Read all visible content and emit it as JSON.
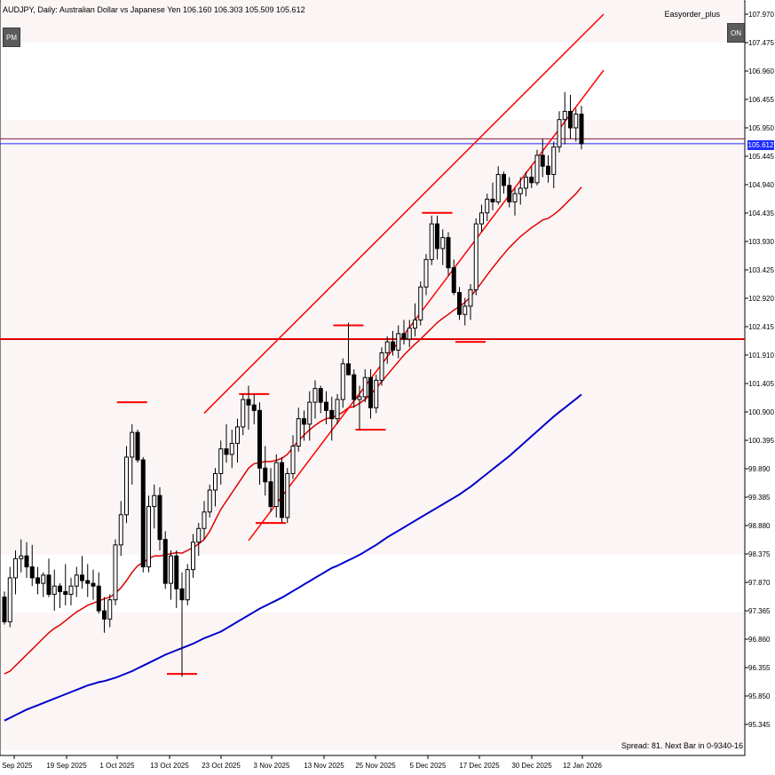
{
  "header": {
    "title": "AUDJPY, Daily:  Australian Dollar vs Japanese Yen  106.160 106.303 105.509 105.612",
    "ea_label": "Easyorder_plus",
    "btn_left": "PM",
    "btn_right": "ON",
    "spread": "Spread: 81. Next Bar in 0-9340-16"
  },
  "colors": {
    "bull": "#ffffff",
    "bear": "#000000",
    "ma_fast": "#e00000",
    "ma_slow": "#0000cc",
    "channel": "#ff0000",
    "hline_red": "#e00000",
    "hline_blue": "#1e2bff",
    "grid_band": "#fbf5f5"
  },
  "chart_data": {
    "type": "candlestick",
    "symbol": "AUDJPY",
    "timeframe": "Daily",
    "current_price": "105.612",
    "ylim": [
      95.03,
      107.97
    ],
    "y_ticks": [
      "107.970",
      "107.475",
      "106.960",
      "106.455",
      "105.950",
      "105.445",
      "104.940",
      "104.435",
      "103.930",
      "103.425",
      "102.920",
      "102.415",
      "101.910",
      "101.405",
      "100.900",
      "100.395",
      "99.890",
      "99.385",
      "98.880",
      "98.375",
      "97.870",
      "97.365",
      "96.860",
      "96.355",
      "95.850",
      "95.345"
    ],
    "x_labels": [
      "9 Sep 2025",
      "19 Sep 2025",
      "1 Oct 2025",
      "13 Oct 2025",
      "23 Oct 2025",
      "3 Nov 2025",
      "13 Nov 2025",
      "25 Nov 2025",
      "5 Dec 2025",
      "17 Dec 2025",
      "30 Dec 2025",
      "12 Jan 2026"
    ],
    "candles": [
      [
        97.35,
        97.45,
        96.85,
        96.9
      ],
      [
        96.9,
        97.9,
        96.8,
        97.7
      ],
      [
        97.7,
        98.2,
        97.4,
        98.05
      ],
      [
        98.05,
        98.4,
        97.8,
        98.1
      ],
      [
        98.1,
        98.35,
        97.7,
        97.9
      ],
      [
        97.9,
        98.3,
        97.55,
        97.7
      ],
      [
        97.7,
        97.9,
        97.4,
        97.6
      ],
      [
        97.6,
        97.8,
        97.35,
        97.75
      ],
      [
        97.75,
        98.05,
        97.35,
        97.4
      ],
      [
        97.4,
        97.85,
        97.1,
        97.55
      ],
      [
        97.55,
        97.6,
        97.15,
        97.45
      ],
      [
        97.45,
        97.95,
        97.2,
        97.4
      ],
      [
        97.4,
        97.7,
        97.2,
        97.55
      ],
      [
        97.55,
        97.9,
        97.35,
        97.75
      ],
      [
        97.75,
        98.1,
        97.5,
        97.65
      ],
      [
        97.65,
        97.95,
        97.35,
        97.6
      ],
      [
        97.6,
        97.85,
        97.3,
        97.55
      ],
      [
        97.55,
        97.8,
        97.05,
        97.1
      ],
      [
        97.1,
        97.35,
        96.7,
        96.95
      ],
      [
        96.95,
        97.4,
        96.8,
        97.3
      ],
      [
        97.3,
        98.4,
        97.2,
        98.3
      ],
      [
        98.3,
        99.1,
        98.1,
        98.85
      ],
      [
        98.85,
        100.1,
        98.7,
        99.9
      ],
      [
        99.9,
        100.5,
        99.4,
        100.35
      ],
      [
        100.35,
        100.4,
        99.8,
        99.85
      ],
      [
        99.85,
        99.9,
        97.8,
        97.9
      ],
      [
        97.9,
        99.2,
        97.8,
        99.0
      ],
      [
        99.0,
        99.4,
        98.6,
        99.2
      ],
      [
        99.2,
        99.35,
        98.2,
        98.4
      ],
      [
        98.4,
        98.55,
        97.5,
        97.6
      ],
      [
        97.6,
        98.2,
        97.3,
        98.1
      ],
      [
        98.1,
        98.2,
        97.15,
        97.5
      ],
      [
        97.5,
        97.8,
        95.9,
        97.3
      ],
      [
        97.3,
        97.95,
        97.2,
        97.85
      ],
      [
        97.85,
        98.5,
        97.7,
        98.35
      ],
      [
        98.35,
        98.7,
        98.1,
        98.6
      ],
      [
        98.6,
        99.1,
        98.4,
        98.9
      ],
      [
        98.9,
        99.4,
        98.8,
        99.3
      ],
      [
        99.3,
        99.7,
        99.0,
        99.6
      ],
      [
        99.6,
        100.2,
        99.4,
        100.05
      ],
      [
        100.05,
        100.5,
        99.8,
        99.95
      ],
      [
        99.95,
        100.4,
        99.7,
        100.15
      ],
      [
        100.15,
        100.6,
        99.8,
        100.45
      ],
      [
        100.45,
        101.05,
        100.3,
        100.95
      ],
      [
        100.95,
        101.2,
        100.4,
        100.85
      ],
      [
        100.85,
        101.05,
        100.5,
        100.75
      ],
      [
        100.75,
        100.9,
        99.4,
        99.7
      ],
      [
        99.7,
        100.1,
        99.2,
        99.45
      ],
      [
        99.45,
        99.7,
        98.9,
        99.0
      ],
      [
        99.0,
        99.95,
        98.8,
        99.8
      ],
      [
        99.8,
        99.9,
        98.7,
        98.8
      ],
      [
        98.8,
        99.7,
        98.7,
        99.6
      ],
      [
        99.6,
        100.3,
        99.5,
        100.1
      ],
      [
        100.1,
        100.8,
        100.0,
        100.6
      ],
      [
        100.6,
        100.75,
        100.2,
        100.5
      ],
      [
        100.5,
        101.1,
        100.2,
        100.9
      ],
      [
        100.9,
        101.3,
        100.6,
        101.15
      ],
      [
        101.15,
        101.2,
        100.7,
        100.9
      ],
      [
        100.9,
        101.1,
        100.5,
        100.75
      ],
      [
        100.75,
        101.0,
        100.2,
        100.6
      ],
      [
        100.6,
        101.05,
        100.5,
        100.95
      ],
      [
        100.95,
        101.7,
        100.8,
        101.6
      ],
      [
        101.6,
        102.35,
        101.4,
        101.4
      ],
      [
        101.4,
        101.5,
        100.8,
        100.95
      ],
      [
        100.95,
        101.2,
        100.4,
        101.0
      ],
      [
        101.0,
        101.5,
        100.9,
        101.35
      ],
      [
        101.35,
        101.5,
        100.6,
        100.8
      ],
      [
        100.8,
        101.4,
        100.7,
        101.3
      ],
      [
        101.3,
        101.9,
        101.2,
        101.8
      ],
      [
        101.8,
        102.1,
        101.6,
        102.0
      ],
      [
        102.0,
        102.2,
        101.75,
        101.85
      ],
      [
        101.85,
        102.3,
        101.7,
        102.15
      ],
      [
        102.15,
        102.4,
        101.95,
        102.05
      ],
      [
        102.05,
        102.4,
        101.9,
        102.25
      ],
      [
        102.25,
        102.7,
        102.1,
        102.4
      ],
      [
        102.4,
        103.1,
        102.3,
        103.0
      ],
      [
        103.0,
        103.6,
        102.85,
        103.5
      ],
      [
        103.5,
        104.3,
        103.4,
        104.15
      ],
      [
        104.15,
        104.3,
        103.5,
        103.7
      ],
      [
        103.7,
        104.05,
        103.4,
        103.9
      ],
      [
        103.9,
        104.0,
        103.2,
        103.35
      ],
      [
        103.35,
        103.5,
        102.85,
        102.9
      ],
      [
        102.9,
        103.0,
        102.4,
        102.5
      ],
      [
        102.5,
        102.8,
        102.3,
        102.65
      ],
      [
        102.65,
        103.05,
        102.4,
        102.95
      ],
      [
        102.95,
        104.25,
        102.85,
        104.15
      ],
      [
        104.15,
        104.5,
        104.0,
        104.35
      ],
      [
        104.35,
        104.7,
        104.2,
        104.6
      ],
      [
        104.6,
        104.9,
        104.4,
        104.55
      ],
      [
        104.55,
        105.2,
        104.5,
        105.05
      ],
      [
        105.05,
        105.1,
        104.7,
        104.85
      ],
      [
        104.85,
        105.0,
        104.45,
        104.55
      ],
      [
        104.55,
        104.8,
        104.3,
        104.7
      ],
      [
        104.7,
        105.0,
        104.5,
        104.8
      ],
      [
        104.8,
        105.1,
        104.65,
        105.0
      ],
      [
        105.0,
        105.2,
        104.8,
        104.9
      ],
      [
        104.9,
        105.5,
        104.85,
        105.4
      ],
      [
        105.4,
        105.7,
        105.0,
        105.2
      ],
      [
        105.2,
        105.4,
        104.9,
        105.05
      ],
      [
        105.05,
        105.65,
        104.8,
        105.55
      ],
      [
        105.55,
        106.2,
        105.45,
        106.05
      ],
      [
        106.05,
        106.55,
        105.6,
        106.2
      ],
      [
        106.2,
        106.5,
        105.7,
        105.9
      ],
      [
        105.9,
        106.25,
        105.65,
        106.15
      ],
      [
        106.15,
        106.3,
        105.51,
        105.61
      ]
    ],
    "ma_fast": [
      95.95,
      96.0,
      96.1,
      96.2,
      96.3,
      96.4,
      96.5,
      96.6,
      96.7,
      96.78,
      96.84,
      96.92,
      97.0,
      97.08,
      97.14,
      97.2,
      97.24,
      97.28,
      97.32,
      97.35,
      97.42,
      97.52,
      97.65,
      97.8,
      97.92,
      97.98,
      98.05,
      98.1,
      98.1,
      98.12,
      98.14,
      98.16,
      98.15,
      98.2,
      98.25,
      98.32,
      98.4,
      98.55,
      98.75,
      98.95,
      99.1,
      99.25,
      99.4,
      99.55,
      99.7,
      99.78,
      99.8,
      99.82,
      99.82,
      99.84,
      99.88,
      99.95,
      100.08,
      100.2,
      100.3,
      100.4,
      100.48,
      100.55,
      100.6,
      100.62,
      100.66,
      100.72,
      100.8,
      100.82,
      100.88,
      100.95,
      101.05,
      101.15,
      101.28,
      101.4,
      101.52,
      101.64,
      101.76,
      101.86,
      101.96,
      102.05,
      102.15,
      102.25,
      102.35,
      102.43,
      102.5,
      102.58,
      102.64,
      102.72,
      102.82,
      102.95,
      103.08,
      103.22,
      103.35,
      103.48,
      103.6,
      103.72,
      103.82,
      103.92,
      104.0,
      104.08,
      104.15,
      104.22,
      104.25,
      104.32,
      104.4,
      104.5,
      104.6,
      104.7,
      104.82
    ],
    "ma_slow": [
      95.1,
      95.15,
      95.2,
      95.25,
      95.3,
      95.34,
      95.38,
      95.42,
      95.46,
      95.5,
      95.54,
      95.58,
      95.62,
      95.66,
      95.7,
      95.74,
      95.77,
      95.8,
      95.82,
      95.85,
      95.88,
      95.92,
      95.96,
      96.0,
      96.05,
      96.1,
      96.15,
      96.2,
      96.25,
      96.3,
      96.34,
      96.38,
      96.42,
      96.46,
      96.5,
      96.55,
      96.6,
      96.64,
      96.68,
      96.72,
      96.78,
      96.84,
      96.9,
      96.96,
      97.02,
      97.08,
      97.14,
      97.19,
      97.24,
      97.29,
      97.34,
      97.4,
      97.46,
      97.52,
      97.58,
      97.64,
      97.7,
      97.76,
      97.82,
      97.88,
      97.92,
      97.97,
      98.02,
      98.07,
      98.12,
      98.18,
      98.24,
      98.3,
      98.37,
      98.44,
      98.5,
      98.56,
      98.62,
      98.68,
      98.74,
      98.8,
      98.86,
      98.92,
      98.98,
      99.04,
      99.1,
      99.16,
      99.22,
      99.29,
      99.36,
      99.44,
      99.52,
      99.6,
      99.68,
      99.76,
      99.84,
      99.92,
      100.01,
      100.1,
      100.19,
      100.28,
      100.37,
      100.46,
      100.55,
      100.64,
      100.72,
      100.8,
      100.88,
      100.96,
      101.04
    ],
    "lines": {
      "h_red": 102.05,
      "h_blue": 105.61,
      "h_red_upper": 105.7,
      "channel_upper": [
        [
          36,
          100.7
        ],
        [
          108,
          107.97
        ]
      ],
      "channel_lower": [
        [
          44,
          98.38
        ],
        [
          108,
          106.95
        ]
      ]
    },
    "level_marks": [
      {
        "i": 23,
        "price": 100.9
      },
      {
        "i": 45,
        "price": 101.05
      },
      {
        "i": 62,
        "price": 102.3
      },
      {
        "i": 78,
        "price": 104.35
      },
      {
        "i": 48,
        "price": 98.7
      },
      {
        "i": 66,
        "price": 100.4
      },
      {
        "i": 32,
        "price": 95.95
      },
      {
        "i": 84,
        "price": 102.0
      }
    ]
  }
}
